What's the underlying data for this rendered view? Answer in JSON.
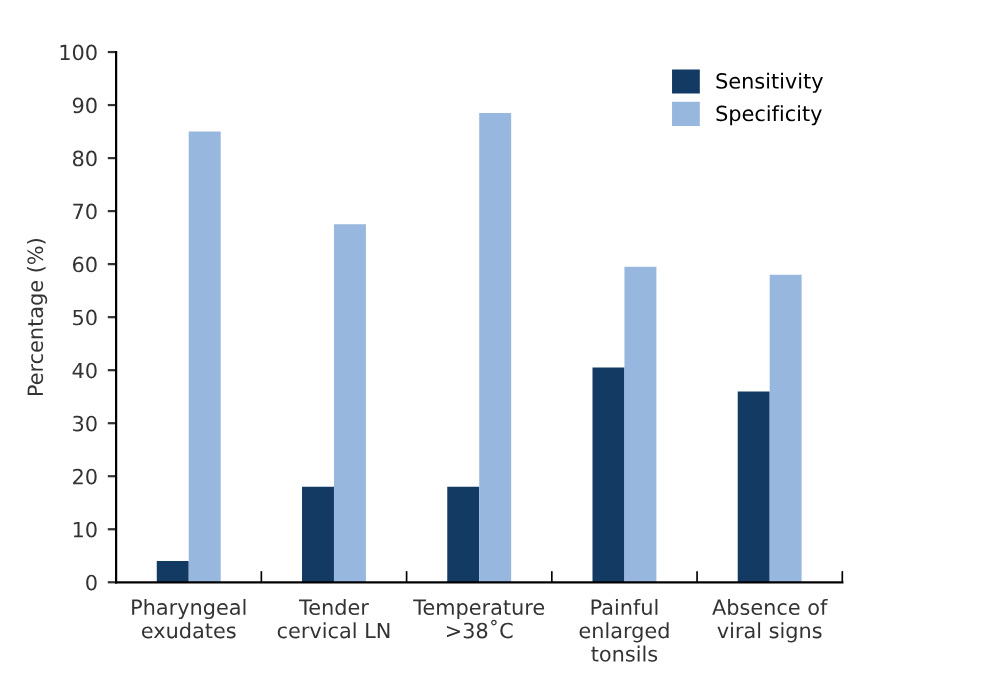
{
  "chart_data": {
    "type": "bar",
    "ylabel": "Percentage (%)",
    "categories": [
      "Pharyngeal\nexudates",
      "Tender\ncervical LN",
      "Temperature\n>38˚C",
      "Painful\nenlarged\ntonsils",
      "Absence of\nviral signs"
    ],
    "series": [
      {
        "name": "Sensitivity",
        "color": "#133a63",
        "values": [
          4,
          18,
          18,
          40.5,
          36
        ]
      },
      {
        "name": "Specificity",
        "color": "#98b7de",
        "values": [
          85,
          67.5,
          88.5,
          59.5,
          58
        ]
      }
    ],
    "ylim": [
      0,
      100
    ],
    "yticks": [
      0,
      10,
      20,
      30,
      40,
      50,
      60,
      70,
      80,
      90,
      100
    ],
    "grid": false,
    "legend": "top right"
  }
}
